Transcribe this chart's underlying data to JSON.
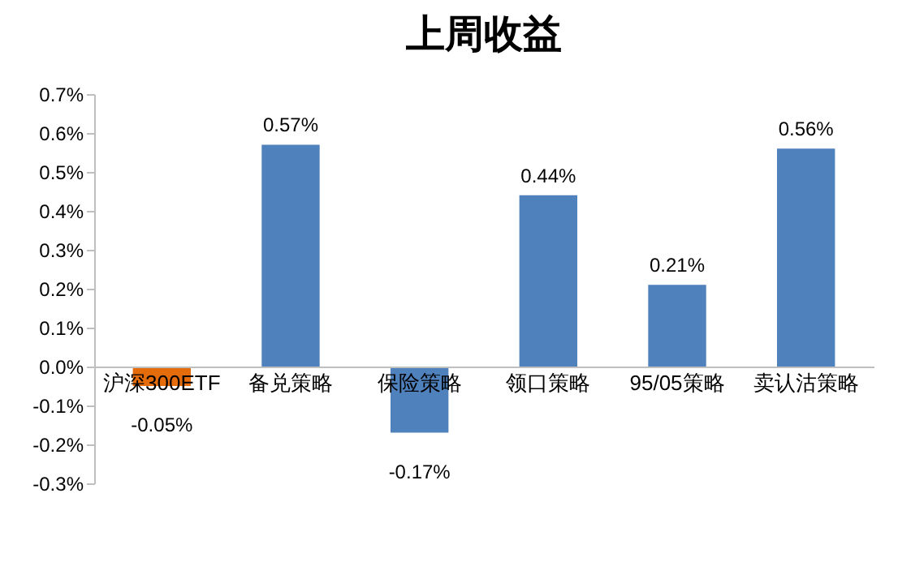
{
  "chart_data": {
    "type": "bar",
    "title": "上周收益",
    "categories": [
      "沪深300ETF",
      "备兑策略",
      "保险策略",
      "领口策略",
      "95/05策略",
      "卖认沽策略"
    ],
    "values": [
      -0.05,
      0.57,
      -0.17,
      0.44,
      0.21,
      0.56
    ],
    "colors": [
      "#e46c0a",
      "#4f81bd",
      "#4f81bd",
      "#4f81bd",
      "#4f81bd",
      "#4f81bd"
    ],
    "value_labels": [
      "-0.05%",
      "0.57%",
      "-0.17%",
      "0.44%",
      "0.21%",
      "0.56%"
    ],
    "ylim": [
      -0.3,
      0.7
    ],
    "yticks": [
      {
        "value": -0.3,
        "label": "-0.3%"
      },
      {
        "value": -0.2,
        "label": "-0.2%"
      },
      {
        "value": -0.1,
        "label": "-0.1%"
      },
      {
        "value": 0,
        "label": "0.0%"
      },
      {
        "value": 0.1,
        "label": "0.1%"
      },
      {
        "value": 0.2,
        "label": "0.2%"
      },
      {
        "value": 0.3,
        "label": "0.3%"
      },
      {
        "value": 0.4,
        "label": "0.4%"
      },
      {
        "value": 0.5,
        "label": "0.5%"
      },
      {
        "value": 0.6,
        "label": "0.6%"
      },
      {
        "value": 0.7,
        "label": "0.7%"
      }
    ],
    "grid": false
  }
}
